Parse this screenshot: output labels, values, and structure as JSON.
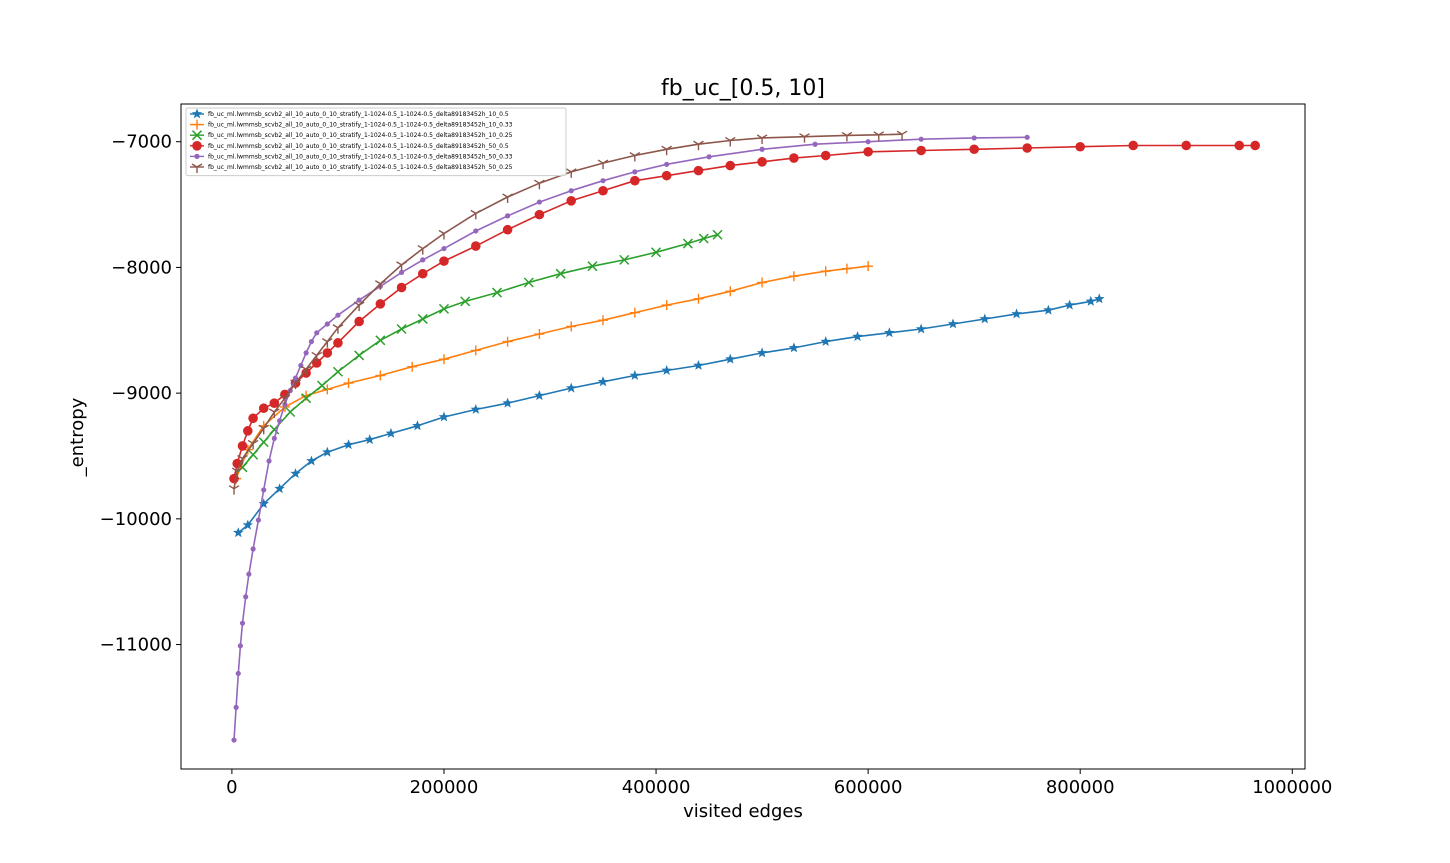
{
  "chart_data": {
    "type": "line",
    "title": "fb_uc_[0.5, 10]",
    "xlabel": "visited edges",
    "ylabel": "_entropy",
    "xlim": [
      -48000,
      1012000
    ],
    "ylim": [
      -11990,
      -6700
    ],
    "x_ticks": [
      0,
      200000,
      400000,
      600000,
      800000,
      1000000
    ],
    "x_tick_labels": [
      "0",
      "200000",
      "400000",
      "600000",
      "800000",
      "1000000"
    ],
    "y_ticks": [
      -11000,
      -10000,
      -9000,
      -8000,
      -7000
    ],
    "y_tick_labels": [
      "−11000",
      "−10000",
      "−9000",
      "−8000",
      "−7000"
    ],
    "grid": false,
    "legend_position": "upper-left",
    "series": [
      {
        "name": "fb_uc_ml.lwmmsb_scvb2_all_10_auto_0_10_stratify_1-1024-0.5_1-1024-0.5_delta89183452h_10_0.5",
        "color": "#1f77b4",
        "marker": "star",
        "points": [
          [
            6000,
            -10110
          ],
          [
            15000,
            -10050
          ],
          [
            30000,
            -9880
          ],
          [
            45000,
            -9760
          ],
          [
            60000,
            -9640
          ],
          [
            75000,
            -9540
          ],
          [
            90000,
            -9470
          ],
          [
            110000,
            -9410
          ],
          [
            130000,
            -9370
          ],
          [
            150000,
            -9320
          ],
          [
            175000,
            -9260
          ],
          [
            200000,
            -9190
          ],
          [
            230000,
            -9130
          ],
          [
            260000,
            -9080
          ],
          [
            290000,
            -9020
          ],
          [
            320000,
            -8960
          ],
          [
            350000,
            -8910
          ],
          [
            380000,
            -8860
          ],
          [
            410000,
            -8820
          ],
          [
            440000,
            -8780
          ],
          [
            470000,
            -8730
          ],
          [
            500000,
            -8680
          ],
          [
            530000,
            -8640
          ],
          [
            560000,
            -8590
          ],
          [
            590000,
            -8550
          ],
          [
            620000,
            -8520
          ],
          [
            650000,
            -8490
          ],
          [
            680000,
            -8450
          ],
          [
            710000,
            -8410
          ],
          [
            740000,
            -8370
          ],
          [
            770000,
            -8340
          ],
          [
            790000,
            -8300
          ],
          [
            810000,
            -8270
          ],
          [
            818000,
            -8250
          ]
        ]
      },
      {
        "name": "fb_uc_ml.lwmmsb_scvb2_all_10_auto_0_10_stratify_1-1024-0.5_1-1024-0.5_delta89183452h_10_0.33",
        "color": "#ff7f0e",
        "marker": "plus",
        "points": [
          [
            4000,
            -9680
          ],
          [
            15000,
            -9450
          ],
          [
            30000,
            -9260
          ],
          [
            50000,
            -9110
          ],
          [
            70000,
            -9020
          ],
          [
            90000,
            -8970
          ],
          [
            110000,
            -8920
          ],
          [
            140000,
            -8860
          ],
          [
            170000,
            -8790
          ],
          [
            200000,
            -8730
          ],
          [
            230000,
            -8660
          ],
          [
            260000,
            -8590
          ],
          [
            290000,
            -8530
          ],
          [
            320000,
            -8470
          ],
          [
            350000,
            -8420
          ],
          [
            380000,
            -8360
          ],
          [
            410000,
            -8300
          ],
          [
            440000,
            -8250
          ],
          [
            470000,
            -8190
          ],
          [
            500000,
            -8120
          ],
          [
            530000,
            -8070
          ],
          [
            560000,
            -8030
          ],
          [
            580000,
            -8010
          ],
          [
            600000,
            -7990
          ]
        ]
      },
      {
        "name": "fb_uc_ml.lwmmsb_scvb2_all_10_auto_0_10_stratify_1-1024-0.5_1-1024-0.5_delta89183452h_10_0.25",
        "color": "#2ca02c",
        "marker": "x",
        "points": [
          [
            10000,
            -9590
          ],
          [
            20000,
            -9490
          ],
          [
            30000,
            -9390
          ],
          [
            40000,
            -9290
          ],
          [
            55000,
            -9150
          ],
          [
            70000,
            -9040
          ],
          [
            85000,
            -8940
          ],
          [
            100000,
            -8830
          ],
          [
            120000,
            -8700
          ],
          [
            140000,
            -8580
          ],
          [
            160000,
            -8490
          ],
          [
            180000,
            -8410
          ],
          [
            200000,
            -8330
          ],
          [
            220000,
            -8270
          ],
          [
            250000,
            -8200
          ],
          [
            280000,
            -8120
          ],
          [
            310000,
            -8050
          ],
          [
            340000,
            -7990
          ],
          [
            370000,
            -7940
          ],
          [
            400000,
            -7880
          ],
          [
            430000,
            -7810
          ],
          [
            445000,
            -7770
          ],
          [
            458000,
            -7740
          ]
        ]
      },
      {
        "name": "fb_uc_ml.lwmmsb_scvb2_all_10_auto_0_10_stratify_1-1024-0.5_1-1024-0.5_delta89183452h_50_0.5",
        "color": "#d62728",
        "marker": "circle",
        "points": [
          [
            2000,
            -9680
          ],
          [
            5000,
            -9560
          ],
          [
            10000,
            -9420
          ],
          [
            15000,
            -9300
          ],
          [
            20000,
            -9200
          ],
          [
            30000,
            -9120
          ],
          [
            40000,
            -9080
          ],
          [
            50000,
            -9010
          ],
          [
            60000,
            -8920
          ],
          [
            70000,
            -8840
          ],
          [
            80000,
            -8760
          ],
          [
            90000,
            -8680
          ],
          [
            100000,
            -8600
          ],
          [
            120000,
            -8430
          ],
          [
            140000,
            -8290
          ],
          [
            160000,
            -8160
          ],
          [
            180000,
            -8050
          ],
          [
            200000,
            -7950
          ],
          [
            230000,
            -7830
          ],
          [
            260000,
            -7700
          ],
          [
            290000,
            -7580
          ],
          [
            320000,
            -7470
          ],
          [
            350000,
            -7390
          ],
          [
            380000,
            -7310
          ],
          [
            410000,
            -7270
          ],
          [
            440000,
            -7230
          ],
          [
            470000,
            -7190
          ],
          [
            500000,
            -7160
          ],
          [
            530000,
            -7130
          ],
          [
            560000,
            -7110
          ],
          [
            600000,
            -7080
          ],
          [
            650000,
            -7070
          ],
          [
            700000,
            -7060
          ],
          [
            750000,
            -7050
          ],
          [
            800000,
            -7040
          ],
          [
            850000,
            -7030
          ],
          [
            900000,
            -7030
          ],
          [
            950000,
            -7030
          ],
          [
            965000,
            -7030
          ]
        ]
      },
      {
        "name": "fb_uc_ml.lwmmsb_scvb2_all_10_auto_0_10_stratify_1-1024-0.5_1-1024-0.5_delta89183452h_50_0.33",
        "color": "#9467bd",
        "marker": "point",
        "points": [
          [
            2000,
            -11760
          ],
          [
            4000,
            -11500
          ],
          [
            6000,
            -11230
          ],
          [
            8000,
            -11010
          ],
          [
            10000,
            -10830
          ],
          [
            13000,
            -10620
          ],
          [
            16000,
            -10440
          ],
          [
            20000,
            -10240
          ],
          [
            25000,
            -10010
          ],
          [
            30000,
            -9770
          ],
          [
            35000,
            -9540
          ],
          [
            40000,
            -9360
          ],
          [
            45000,
            -9220
          ],
          [
            50000,
            -9090
          ],
          [
            55000,
            -8980
          ],
          [
            60000,
            -8880
          ],
          [
            65000,
            -8780
          ],
          [
            70000,
            -8680
          ],
          [
            75000,
            -8590
          ],
          [
            80000,
            -8520
          ],
          [
            90000,
            -8450
          ],
          [
            100000,
            -8380
          ],
          [
            120000,
            -8260
          ],
          [
            140000,
            -8150
          ],
          [
            160000,
            -8040
          ],
          [
            180000,
            -7940
          ],
          [
            200000,
            -7850
          ],
          [
            230000,
            -7710
          ],
          [
            260000,
            -7590
          ],
          [
            290000,
            -7480
          ],
          [
            320000,
            -7390
          ],
          [
            350000,
            -7310
          ],
          [
            380000,
            -7240
          ],
          [
            410000,
            -7180
          ],
          [
            450000,
            -7120
          ],
          [
            500000,
            -7060
          ],
          [
            550000,
            -7020
          ],
          [
            600000,
            -7000
          ],
          [
            650000,
            -6980
          ],
          [
            700000,
            -6970
          ],
          [
            750000,
            -6965
          ]
        ]
      },
      {
        "name": "fb_uc_ml.lwmmsb_scvb2_all_10_auto_0_10_stratify_1-1024-0.5_1-1024-0.5_delta89183452h_50_0.25",
        "color": "#8c564b",
        "marker": "tri_down",
        "points": [
          [
            2000,
            -9760
          ],
          [
            5000,
            -9620
          ],
          [
            10000,
            -9520
          ],
          [
            20000,
            -9400
          ],
          [
            30000,
            -9280
          ],
          [
            40000,
            -9150
          ],
          [
            50000,
            -9040
          ],
          [
            60000,
            -8920
          ],
          [
            70000,
            -8810
          ],
          [
            80000,
            -8700
          ],
          [
            90000,
            -8590
          ],
          [
            100000,
            -8480
          ],
          [
            120000,
            -8300
          ],
          [
            140000,
            -8130
          ],
          [
            160000,
            -7980
          ],
          [
            180000,
            -7850
          ],
          [
            200000,
            -7730
          ],
          [
            230000,
            -7570
          ],
          [
            260000,
            -7440
          ],
          [
            290000,
            -7330
          ],
          [
            320000,
            -7240
          ],
          [
            350000,
            -7170
          ],
          [
            380000,
            -7110
          ],
          [
            410000,
            -7060
          ],
          [
            440000,
            -7020
          ],
          [
            470000,
            -6990
          ],
          [
            500000,
            -6970
          ],
          [
            540000,
            -6960
          ],
          [
            580000,
            -6950
          ],
          [
            610000,
            -6945
          ],
          [
            632000,
            -6940
          ]
        ]
      }
    ]
  }
}
